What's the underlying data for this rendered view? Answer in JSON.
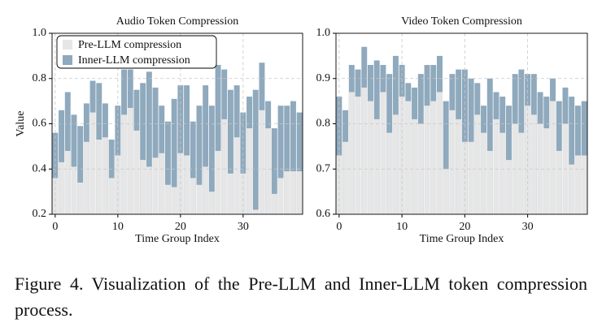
{
  "chart_data": [
    {
      "type": "bar",
      "title": "Audio Token Compression",
      "xlabel": "Time Group Index",
      "ylabel": "Value",
      "x": [
        0,
        1,
        2,
        3,
        4,
        5,
        6,
        7,
        8,
        9,
        10,
        11,
        12,
        13,
        14,
        15,
        16,
        17,
        18,
        19,
        20,
        21,
        22,
        23,
        24,
        25,
        26,
        27,
        28,
        29,
        30,
        31,
        32,
        33,
        34,
        35,
        36,
        37,
        38,
        39
      ],
      "series": [
        {
          "name": "Pre-LLM compression",
          "color": "#e6e6e6",
          "values": [
            0.36,
            0.43,
            0.48,
            0.41,
            0.34,
            0.52,
            0.65,
            0.53,
            0.54,
            0.36,
            0.46,
            0.64,
            0.67,
            0.57,
            0.44,
            0.41,
            0.45,
            0.47,
            0.33,
            0.32,
            0.47,
            0.46,
            0.36,
            0.33,
            0.41,
            0.3,
            0.48,
            0.62,
            0.38,
            0.54,
            0.38,
            0.58,
            0.22,
            0.66,
            0.58,
            0.29,
            0.36,
            0.39,
            0.39,
            0.39
          ]
        },
        {
          "name": "Inner-LLM compression",
          "color": "#8fa9bd",
          "values": [
            0.56,
            0.66,
            0.74,
            0.64,
            0.59,
            0.69,
            0.79,
            0.78,
            0.69,
            0.53,
            0.68,
            0.84,
            0.84,
            0.75,
            0.78,
            0.83,
            0.76,
            0.68,
            0.61,
            0.71,
            0.77,
            0.77,
            0.61,
            0.68,
            0.77,
            0.68,
            0.86,
            0.84,
            0.75,
            0.77,
            0.65,
            0.72,
            0.75,
            0.87,
            0.7,
            0.58,
            0.68,
            0.68,
            0.7,
            0.65
          ]
        }
      ],
      "xlim": [
        -0.5,
        39.5
      ],
      "xticks": [
        0,
        10,
        20,
        30
      ],
      "ylim": [
        0.2,
        1.0
      ],
      "yticks": [
        0.2,
        0.4,
        0.6,
        0.8,
        {
          "value": 1,
          "label": "1.0"
        }
      ],
      "grid": true,
      "legend": "upper left"
    },
    {
      "type": "bar",
      "title": "Video Token Compression",
      "xlabel": "Time Group Index",
      "x": [
        0,
        1,
        2,
        3,
        4,
        5,
        6,
        7,
        8,
        9,
        10,
        11,
        12,
        13,
        14,
        15,
        16,
        17,
        18,
        19,
        20,
        21,
        22,
        23,
        24,
        25,
        26,
        27,
        28,
        29,
        30,
        31,
        32,
        33,
        34,
        35,
        36,
        37,
        38,
        39
      ],
      "series": [
        {
          "name": "Pre-LLM compression",
          "color": "#e6e6e6",
          "values": [
            0.73,
            0.76,
            0.87,
            0.86,
            0.88,
            0.85,
            0.81,
            0.87,
            0.78,
            0.82,
            0.86,
            0.85,
            0.81,
            0.8,
            0.84,
            0.85,
            0.87,
            0.7,
            0.83,
            0.81,
            0.76,
            0.76,
            0.82,
            0.78,
            0.74,
            0.81,
            0.78,
            0.72,
            0.8,
            0.78,
            0.84,
            0.82,
            0.8,
            0.79,
            0.85,
            0.74,
            0.8,
            0.71,
            0.73,
            0.73
          ]
        },
        {
          "name": "Inner-LLM compression",
          "color": "#8fa9bd",
          "values": [
            0.86,
            0.83,
            0.93,
            0.92,
            0.97,
            0.93,
            0.94,
            0.93,
            0.91,
            0.95,
            0.93,
            0.89,
            0.88,
            0.91,
            0.93,
            0.93,
            0.95,
            0.85,
            0.91,
            0.92,
            0.92,
            0.9,
            0.89,
            0.84,
            0.9,
            0.87,
            0.86,
            0.84,
            0.91,
            0.92,
            0.91,
            0.91,
            0.87,
            0.86,
            0.9,
            0.85,
            0.88,
            0.86,
            0.84,
            0.85
          ]
        }
      ],
      "xlim": [
        -0.5,
        39.5
      ],
      "xticks": [
        0,
        10,
        20,
        30
      ],
      "ylim": [
        0.6,
        1.0
      ],
      "yticks": [
        0.6,
        0.7,
        0.8,
        0.9,
        {
          "value": 1,
          "label": "1.0"
        }
      ],
      "grid": true
    }
  ],
  "caption": {
    "label": "Figure 4.",
    "text": "Visualization of the Pre-LLM and Inner-LLM token compression process."
  }
}
